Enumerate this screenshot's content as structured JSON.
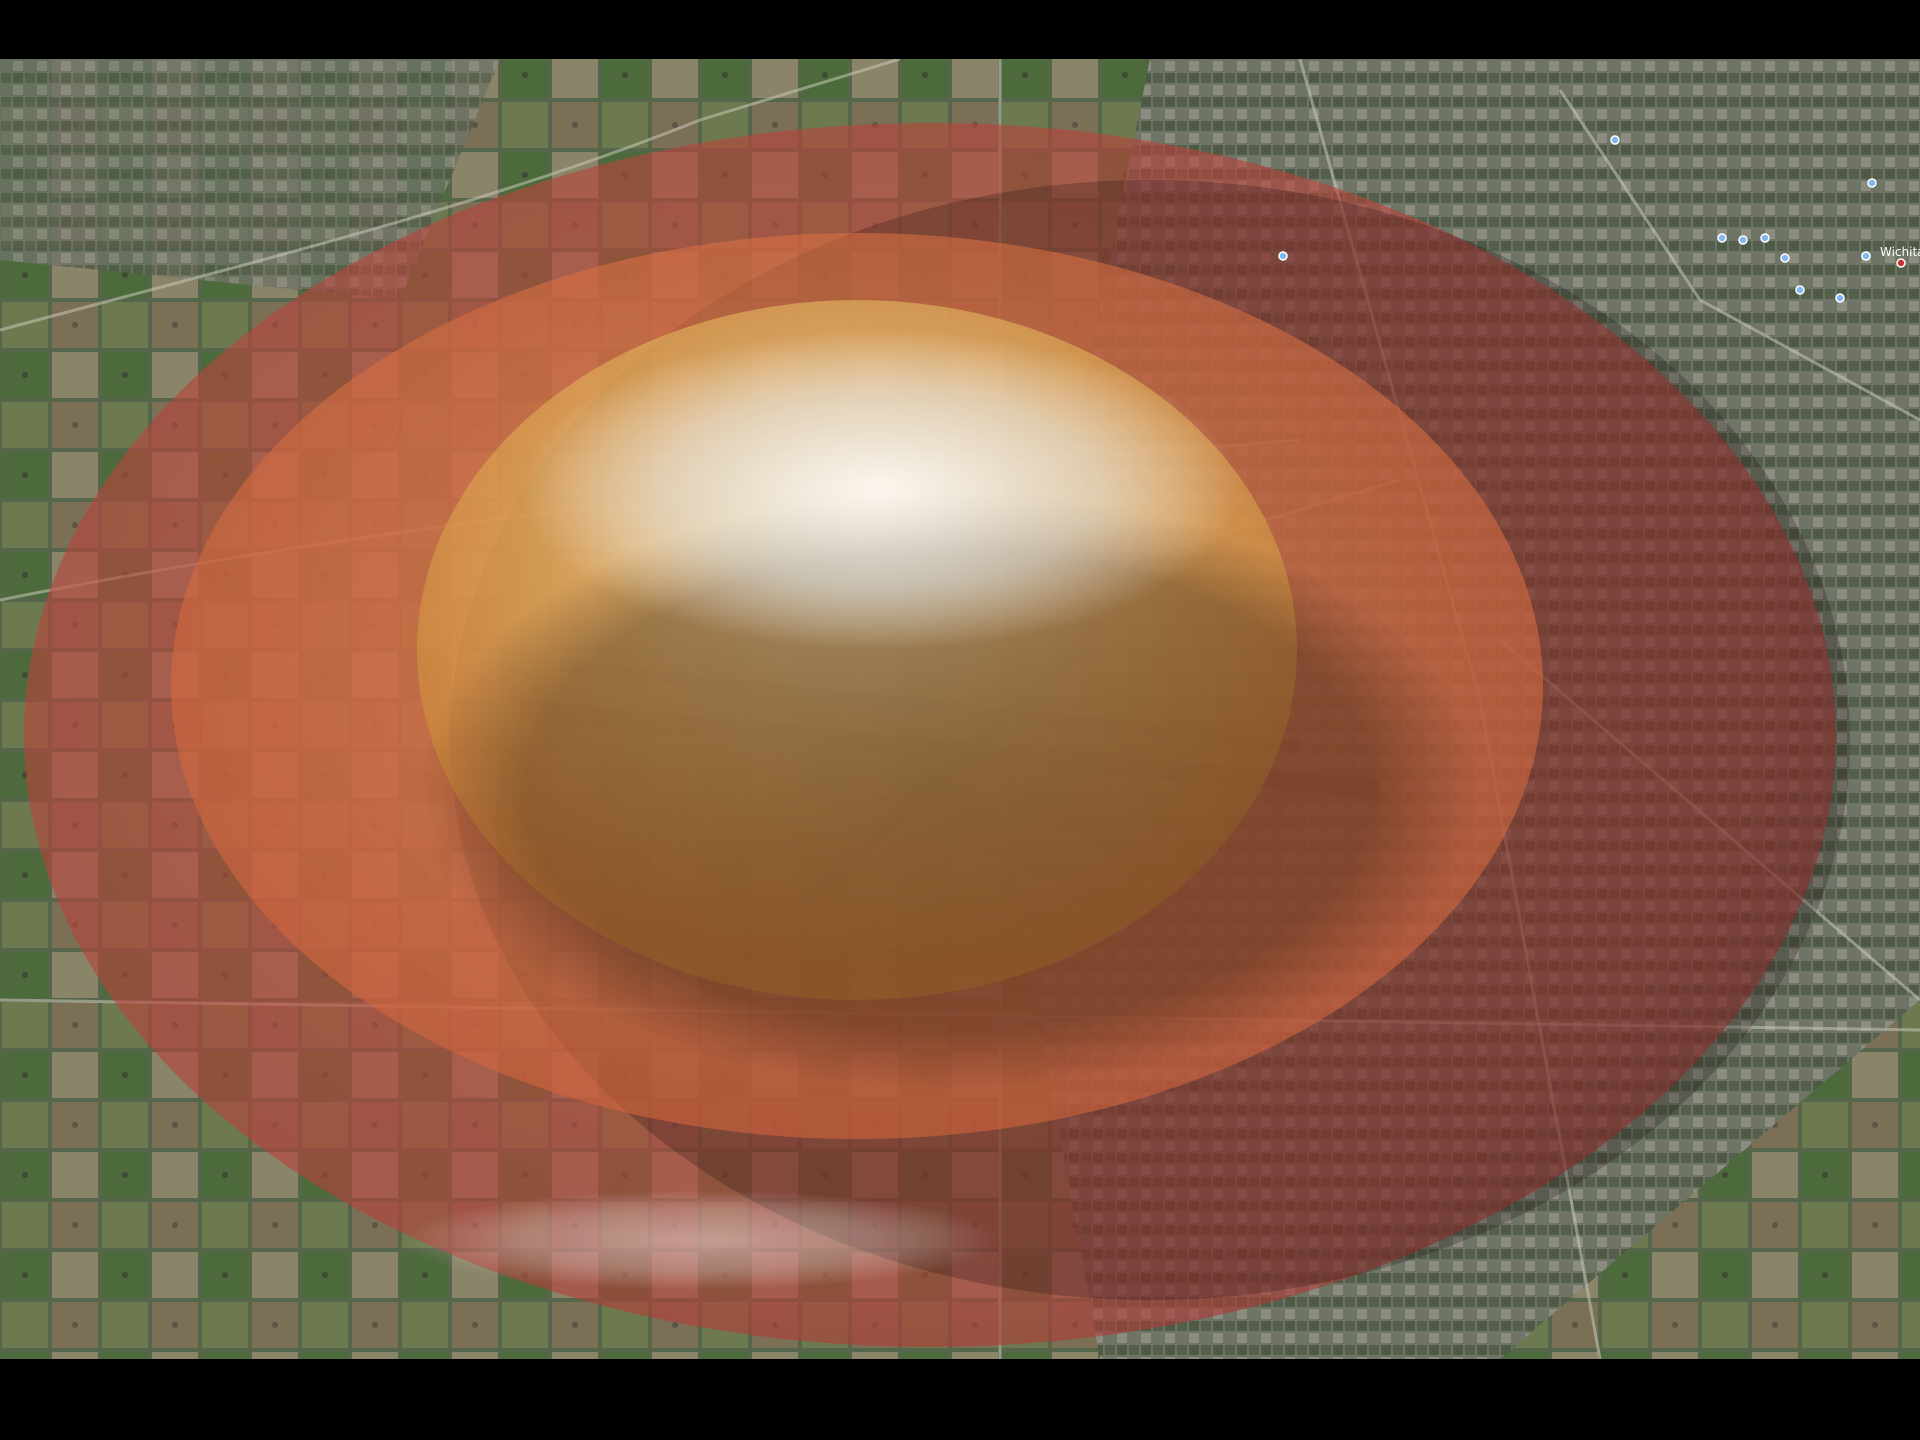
{
  "labels": {
    "city": "Wichita"
  }
}
